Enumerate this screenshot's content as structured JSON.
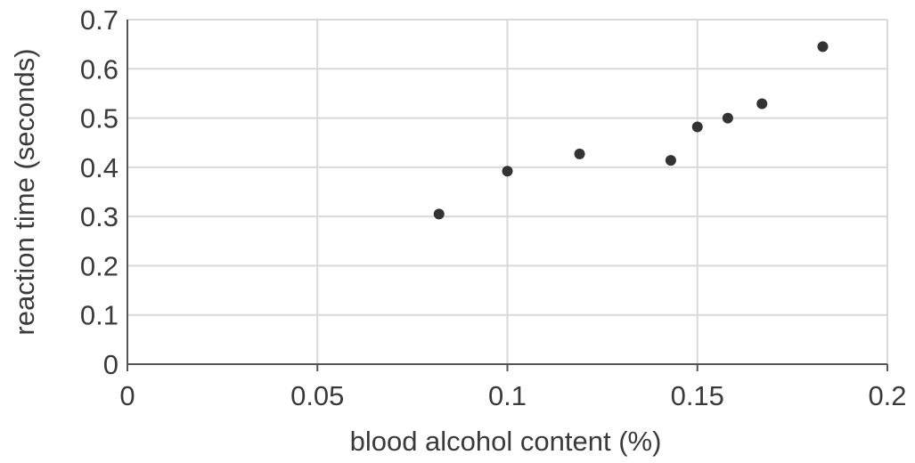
{
  "chart_data": {
    "type": "scatter",
    "title": "",
    "xlabel": "blood alcohol content (%)",
    "ylabel": "reaction time (seconds)",
    "xlim": [
      0,
      0.2
    ],
    "ylim": [
      0,
      0.7
    ],
    "grid": true,
    "xticks": [
      "0",
      "0.05",
      "0.1",
      "0.15",
      "0.2"
    ],
    "yticks": [
      "0",
      "0.1",
      "0.2",
      "0.3",
      "0.4",
      "0.5",
      "0.6",
      "0.7"
    ],
    "point_color": "#333333",
    "points": [
      {
        "x": 0.082,
        "y": 0.305
      },
      {
        "x": 0.1,
        "y": 0.392
      },
      {
        "x": 0.119,
        "y": 0.427
      },
      {
        "x": 0.143,
        "y": 0.414
      },
      {
        "x": 0.15,
        "y": 0.482
      },
      {
        "x": 0.158,
        "y": 0.5
      },
      {
        "x": 0.167,
        "y": 0.529
      },
      {
        "x": 0.183,
        "y": 0.645
      }
    ]
  }
}
